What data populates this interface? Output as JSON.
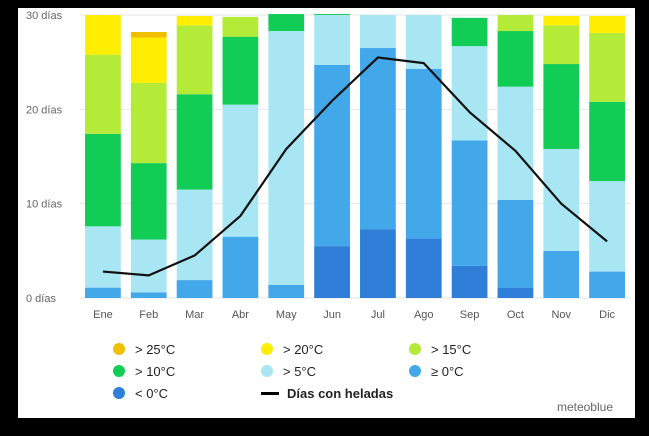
{
  "chart_data": {
    "type": "bar",
    "stacked": true,
    "ylabel": "",
    "ylim": [
      0,
      30
    ],
    "yticks": [
      {
        "value": 0,
        "label": "0 días"
      },
      {
        "value": 10,
        "label": "10 días"
      },
      {
        "value": 20,
        "label": "20 días"
      },
      {
        "value": 30,
        "label": "30 días"
      }
    ],
    "categories": [
      "Ene",
      "Feb",
      "Mar",
      "Abr",
      "May",
      "Jun",
      "Jul",
      "Ago",
      "Sep",
      "Oct",
      "Nov",
      "Dic"
    ],
    "series": [
      {
        "name": "< 0°C",
        "color": "#2f7fd8",
        "values": [
          0,
          0,
          0,
          0,
          0,
          5.5,
          7.3,
          6.3,
          3.4,
          1.1,
          0,
          0
        ]
      },
      {
        "name": "≥ 0°C",
        "color": "#42a8ea",
        "values": [
          1.1,
          0.6,
          1.9,
          6.5,
          1.4,
          19.2,
          19.2,
          18.0,
          13.3,
          9.3,
          5.0,
          2.8
        ]
      },
      {
        "name": "> 5°C",
        "color": "#a8e6f4",
        "values": [
          6.5,
          5.6,
          9.6,
          14.0,
          26.9,
          5.3,
          3.5,
          5.7,
          10.0,
          12.0,
          10.8,
          9.6
        ]
      },
      {
        "name": "> 10°C",
        "color": "#11cc55",
        "values": [
          9.8,
          8.1,
          10.1,
          7.2,
          1.8,
          0.1,
          0,
          0,
          3.0,
          5.9,
          9.0,
          8.4
        ]
      },
      {
        "name": "> 15°C",
        "color": "#b4ea38",
        "values": [
          8.4,
          8.5,
          7.3,
          2.1,
          0,
          0,
          0,
          0,
          0,
          1.7,
          4.1,
          7.3
        ]
      },
      {
        "name": "> 20°C",
        "color": "#ffee00",
        "values": [
          4.2,
          4.8,
          1.0,
          0,
          0,
          0,
          0,
          0,
          0,
          0,
          1.0,
          1.8
        ]
      },
      {
        "name": "> 25°C",
        "color": "#f0c000",
        "values": [
          0,
          0.6,
          0,
          0,
          0,
          0,
          0,
          0,
          0,
          0,
          0,
          0
        ]
      }
    ],
    "line": {
      "name": "Días con heladas",
      "color": "#111111",
      "values": [
        2.8,
        2.4,
        4.5,
        8.7,
        15.8,
        20.9,
        25.5,
        24.9,
        19.7,
        15.6,
        10.0,
        6.0
      ]
    },
    "legend": [
      {
        "label": "> 25°C",
        "color": "#f0c000",
        "kind": "dot"
      },
      {
        "label": "> 20°C",
        "color": "#ffee00",
        "kind": "dot"
      },
      {
        "label": "> 15°C",
        "color": "#b4ea38",
        "kind": "dot"
      },
      {
        "label": "> 10°C",
        "color": "#11cc55",
        "kind": "dot"
      },
      {
        "label": "> 5°C",
        "color": "#a8e6f4",
        "kind": "dot"
      },
      {
        "label": "≥ 0°C",
        "color": "#42a8ea",
        "kind": "dot"
      },
      {
        "label": "< 0°C",
        "color": "#2f7fd8",
        "kind": "dot"
      },
      {
        "label": "Días con heladas",
        "color": "#111111",
        "kind": "line"
      }
    ],
    "watermark": "meteoblue"
  }
}
